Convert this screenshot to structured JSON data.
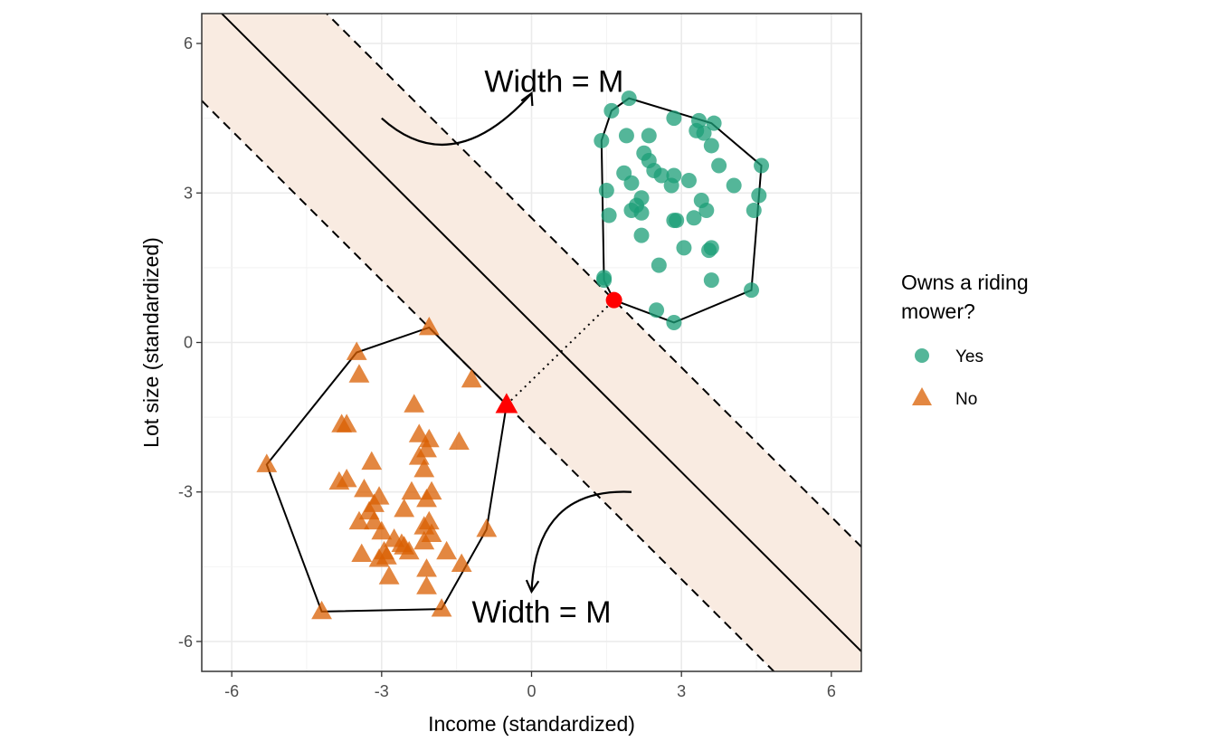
{
  "chart_data": {
    "type": "scatter",
    "title": "",
    "xlabel": "Income (standardized)",
    "ylabel": "Lot size (standardized)",
    "xlim": [
      -6.6,
      6.6
    ],
    "ylim": [
      -6.6,
      6.6
    ],
    "x_ticks": [
      -6,
      -3,
      0,
      3,
      6
    ],
    "y_ticks": [
      -6,
      -3,
      0,
      3,
      6
    ],
    "x_tick_labels": [
      "-6",
      "-3",
      "0",
      "3",
      "6"
    ],
    "y_tick_labels": [
      "-6",
      "-3",
      "0",
      "3",
      "6"
    ],
    "grid": true,
    "legend": {
      "title_lines": [
        "Owns a riding",
        "mower?"
      ],
      "position": "right",
      "entries": [
        {
          "label": "Yes",
          "shape": "circle",
          "color": "#1b9e77"
        },
        {
          "label": "No",
          "shape": "triangle",
          "color": "#d95f02"
        }
      ]
    },
    "colors": {
      "yes": "#1b9e77",
      "no": "#d95f02",
      "support": "#ff0000",
      "margin_fill": "#f9ebe1"
    },
    "series": [
      {
        "name": "Yes",
        "shape": "circle",
        "points": [
          [
            1.95,
            4.9
          ],
          [
            1.6,
            4.65
          ],
          [
            1.4,
            4.05
          ],
          [
            1.9,
            4.15
          ],
          [
            2.35,
            4.15
          ],
          [
            2.85,
            4.5
          ],
          [
            3.35,
            4.45
          ],
          [
            3.65,
            4.4
          ],
          [
            3.3,
            4.25
          ],
          [
            3.45,
            4.2
          ],
          [
            3.6,
            3.95
          ],
          [
            2.25,
            3.8
          ],
          [
            2.35,
            3.65
          ],
          [
            2.45,
            3.45
          ],
          [
            2.6,
            3.35
          ],
          [
            2.85,
            3.35
          ],
          [
            3.15,
            3.25
          ],
          [
            2.8,
            3.15
          ],
          [
            3.75,
            3.55
          ],
          [
            4.6,
            3.55
          ],
          [
            1.85,
            3.4
          ],
          [
            2.0,
            3.2
          ],
          [
            1.5,
            3.05
          ],
          [
            2.2,
            2.9
          ],
          [
            2.1,
            2.75
          ],
          [
            2.0,
            2.65
          ],
          [
            2.2,
            2.6
          ],
          [
            1.55,
            2.55
          ],
          [
            2.85,
            2.45
          ],
          [
            2.9,
            2.45
          ],
          [
            3.25,
            2.5
          ],
          [
            3.5,
            2.65
          ],
          [
            3.4,
            2.85
          ],
          [
            4.05,
            3.15
          ],
          [
            4.45,
            2.65
          ],
          [
            4.55,
            2.95
          ],
          [
            2.2,
            2.15
          ],
          [
            3.05,
            1.9
          ],
          [
            3.55,
            1.85
          ],
          [
            3.6,
            1.9
          ],
          [
            2.55,
            1.55
          ],
          [
            3.6,
            1.25
          ],
          [
            1.45,
            1.3
          ],
          [
            1.45,
            1.25
          ],
          [
            4.4,
            1.05
          ],
          [
            2.5,
            0.65
          ],
          [
            2.85,
            0.4
          ]
        ]
      },
      {
        "name": "No",
        "shape": "triangle",
        "points": [
          [
            -2.05,
            0.3
          ],
          [
            -3.5,
            -0.2
          ],
          [
            -3.45,
            -0.65
          ],
          [
            -1.2,
            -0.75
          ],
          [
            -2.35,
            -1.25
          ],
          [
            -3.8,
            -1.65
          ],
          [
            -3.7,
            -1.65
          ],
          [
            -2.25,
            -1.85
          ],
          [
            -2.05,
            -1.95
          ],
          [
            -2.1,
            -2.15
          ],
          [
            -1.45,
            -2.0
          ],
          [
            -2.25,
            -2.3
          ],
          [
            -3.2,
            -2.4
          ],
          [
            -2.15,
            -2.55
          ],
          [
            -5.3,
            -2.45
          ],
          [
            -3.85,
            -2.8
          ],
          [
            -3.7,
            -2.75
          ],
          [
            -3.35,
            -2.95
          ],
          [
            -3.05,
            -3.1
          ],
          [
            -2.4,
            -3.0
          ],
          [
            -2.0,
            -3.0
          ],
          [
            -2.1,
            -3.15
          ],
          [
            -3.15,
            -3.25
          ],
          [
            -2.55,
            -3.35
          ],
          [
            -3.25,
            -3.4
          ],
          [
            -3.45,
            -3.6
          ],
          [
            -3.15,
            -3.6
          ],
          [
            -2.05,
            -3.6
          ],
          [
            -2.15,
            -3.7
          ],
          [
            -3.0,
            -3.8
          ],
          [
            -2.0,
            -3.85
          ],
          [
            -0.9,
            -3.75
          ],
          [
            -2.75,
            -3.95
          ],
          [
            -2.6,
            -4.05
          ],
          [
            -2.15,
            -4.0
          ],
          [
            -2.55,
            -4.1
          ],
          [
            -2.95,
            -4.2
          ],
          [
            -3.4,
            -4.25
          ],
          [
            -1.7,
            -4.2
          ],
          [
            -2.9,
            -4.3
          ],
          [
            -2.45,
            -4.2
          ],
          [
            -3.05,
            -4.35
          ],
          [
            -1.4,
            -4.45
          ],
          [
            -2.1,
            -4.55
          ],
          [
            -2.85,
            -4.7
          ],
          [
            -2.1,
            -4.9
          ],
          [
            -4.2,
            -5.4
          ],
          [
            -1.8,
            -5.35
          ]
        ]
      }
    ],
    "support_points": {
      "yes": [
        1.65,
        0.85
      ],
      "no": [
        -0.5,
        -1.25
      ]
    },
    "hulls": {
      "yes": [
        [
          1.95,
          4.9
        ],
        [
          3.6,
          4.4
        ],
        [
          4.6,
          3.55
        ],
        [
          4.4,
          1.05
        ],
        [
          2.85,
          0.4
        ],
        [
          1.65,
          0.85
        ],
        [
          1.45,
          1.25
        ],
        [
          1.4,
          4.05
        ],
        [
          1.6,
          4.65
        ]
      ],
      "no": [
        [
          -2.05,
          0.3
        ],
        [
          -0.5,
          -1.25
        ],
        [
          -0.9,
          -3.75
        ],
        [
          -1.8,
          -5.35
        ],
        [
          -4.2,
          -5.4
        ],
        [
          -5.3,
          -2.45
        ],
        [
          -3.5,
          -0.2
        ]
      ]
    },
    "lines": {
      "boundary": {
        "slope": -1,
        "intercept": 0.4
      },
      "margin_upper": {
        "slope": -1,
        "intercept": 2.5
      },
      "margin_lower": {
        "slope": -1,
        "intercept": -1.75
      }
    },
    "annotations": [
      {
        "text": "Width = M",
        "x": 0.45,
        "y": 5.25
      },
      {
        "text": "Width = M",
        "x": 0.2,
        "y": -5.4
      }
    ],
    "arrows": [
      {
        "from": [
          -3.0,
          4.5
        ],
        "to": [
          0.0,
          5.0
        ]
      },
      {
        "from": [
          2.0,
          -3.0
        ],
        "to": [
          0.0,
          -5.0
        ]
      }
    ]
  }
}
